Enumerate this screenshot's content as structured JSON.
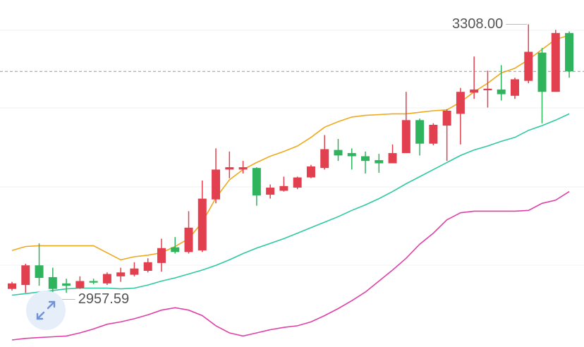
{
  "chart_data": {
    "type": "candlestick",
    "ylim": [
      2897,
      3339
    ],
    "up_color": "#e2404f",
    "down_color": "#2fb35c",
    "open": [
      2971,
      2976,
      3001,
      2986,
      2978,
      2972,
      2981,
      2978,
      2987,
      2989,
      2994,
      3004,
      3024,
      3018,
      3020,
      3085,
      3123,
      3123,
      3125,
      3091,
      3096,
      3100,
      3113,
      3125,
      3148,
      3144,
      3140,
      3135,
      3131,
      3144,
      3186,
      3156,
      3179,
      3194,
      3221,
      3224,
      3225,
      3217,
      3236,
      3272,
      3222,
      3297
    ],
    "high": [
      2980,
      3003,
      3029,
      2998,
      2984,
      2987,
      2984,
      2992,
      2998,
      3005,
      3010,
      3035,
      3037,
      3070,
      3109,
      3150,
      3146,
      3134,
      3126,
      3104,
      3114,
      3114,
      3129,
      3167,
      3162,
      3150,
      3146,
      3143,
      3155,
      3222,
      3188,
      3182,
      3200,
      3227,
      3267,
      3249,
      3256,
      3240,
      3308,
      3278,
      3301,
      3299
    ],
    "low": [
      2969,
      2966,
      2975,
      2957.59,
      2966,
      2971,
      2977,
      2976,
      2980,
      2987,
      2992,
      2993,
      3016,
      3016,
      3018,
      3080,
      3112,
      3118,
      3077,
      3086,
      3095,
      3098,
      3112,
      3123,
      3134,
      3123,
      3118,
      3119,
      3131,
      3144,
      3141,
      3154,
      3134,
      3155,
      3213,
      3202,
      3211,
      3213,
      3233,
      3182,
      3222,
      3240
    ],
    "close": [
      2978,
      3001,
      2985,
      2971,
      2975,
      2981,
      2979,
      2990,
      2992,
      2997,
      3005,
      3023,
      3018,
      3049,
      3086,
      3123,
      3126,
      3126,
      3090,
      3100,
      3102,
      3113,
      3127,
      3149,
      3141,
      3140,
      3134,
      3131,
      3144,
      3186,
      3156,
      3180,
      3198,
      3222,
      3225,
      3226,
      3219,
      3238,
      3273,
      3222,
      3297,
      3248
    ],
    "lines": [
      {
        "color": "#f0a81c",
        "values": [
          3020,
          3025,
          3026,
          3026,
          3026,
          3026,
          3026,
          3017,
          3008,
          3012,
          3014,
          3017,
          3025,
          3035,
          3056,
          3087,
          3110,
          3123,
          3132,
          3140,
          3146,
          3153,
          3164,
          3177,
          3184,
          3190,
          3192,
          3193,
          3194,
          3194,
          3196,
          3198,
          3199,
          3209,
          3222,
          3233,
          3246,
          3252,
          3263,
          3276,
          3289,
          3294
        ]
      },
      {
        "color": "#2ec9a0",
        "values": [
          2963,
          2965,
          2967,
          2969,
          2971,
          2972,
          2972,
          2972,
          2971,
          2972,
          2976,
          2981,
          2985,
          2990,
          2995,
          3001,
          3008,
          3016,
          3023,
          3029,
          3035,
          3042,
          3049,
          3056,
          3063,
          3071,
          3078,
          3086,
          3095,
          3105,
          3114,
          3123,
          3132,
          3141,
          3148,
          3153,
          3159,
          3164,
          3173,
          3179,
          3186,
          3194
        ]
      },
      {
        "color": "#e040a8",
        "values": [
          2906,
          2908,
          2909,
          2910,
          2911,
          2915,
          2920,
          2926,
          2929,
          2933,
          2938,
          2944,
          2947,
          2944,
          2937,
          2924,
          2915,
          2911,
          2915,
          2919,
          2922,
          2924,
          2929,
          2937,
          2946,
          2956,
          2967,
          2981,
          2995,
          3010,
          3028,
          3042,
          3059,
          3068,
          3070,
          3070,
          3070,
          3070,
          3071,
          3080,
          3084,
          3095
        ]
      }
    ],
    "max_label": "3308.00",
    "min_label": "2957.59"
  }
}
